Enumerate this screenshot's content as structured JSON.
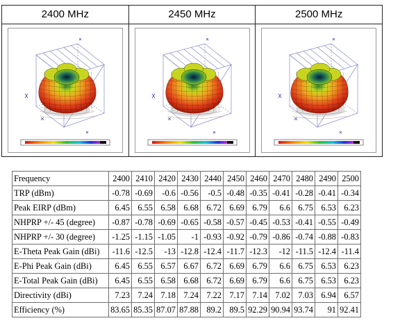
{
  "patterns": [
    {
      "frequency_label": "2400 MHz"
    },
    {
      "frequency_label": "2450 MHz"
    },
    {
      "frequency_label": "2500 MHz"
    }
  ],
  "table": {
    "header_label": "Frequency",
    "frequencies": [
      "2400",
      "2410",
      "2420",
      "2430",
      "2440",
      "2450",
      "2460",
      "2470",
      "2480",
      "2490",
      "2500"
    ],
    "rows": [
      {
        "label": "TRP (dBm)",
        "values": [
          "-0.78",
          "-0.69",
          "-0.6",
          "-0.56",
          "-0.5",
          "-0.48",
          "-0.35",
          "-0.41",
          "-0.28",
          "-0.41",
          "-0.34"
        ]
      },
      {
        "label": "Peak EIRP (dBm)",
        "values": [
          "6.45",
          "6.55",
          "6.58",
          "6.68",
          "6.72",
          "6.69",
          "6.79",
          "6.6",
          "6.75",
          "6.53",
          "6.23"
        ]
      },
      {
        "label": "NHPRP +/- 45 (degree)",
        "values": [
          "-0.87",
          "-0.78",
          "-0.69",
          "-0.65",
          "-0.58",
          "-0.57",
          "-0.45",
          "-0.53",
          "-0.41",
          "-0.55",
          "-0.49"
        ]
      },
      {
        "label": "NHPRP +/- 30 (degree)",
        "values": [
          "-1.25",
          "-1.15",
          "-1.05",
          "-1",
          "-0.93",
          "-0.92",
          "-0.79",
          "-0.86",
          "-0.74",
          "-0.88",
          "-0.83"
        ]
      },
      {
        "label": "E-Theta Peak Gain (dBi)",
        "values": [
          "-11.6",
          "-12.5",
          "-13",
          "-12.8",
          "-12.4",
          "-11.7",
          "-12.3",
          "-12",
          "-11.5",
          "-12.4",
          "-11.4"
        ]
      },
      {
        "label": "E-Phi Peak Gain (dBi)",
        "values": [
          "6.45",
          "6.55",
          "6.57",
          "6.67",
          "6.72",
          "6.69",
          "6.79",
          "6.6",
          "6.75",
          "6.53",
          "6.23"
        ]
      },
      {
        "label": "E-Total Peak Gain (dBi)",
        "values": [
          "6.45",
          "6.55",
          "6.58",
          "6.68",
          "6.72",
          "6.69",
          "6.79",
          "6.6",
          "6.75",
          "6.53",
          "6.23"
        ]
      },
      {
        "label": "Directivity (dBi)",
        "values": [
          "7.23",
          "7.24",
          "7.18",
          "7.24",
          "7.22",
          "7.17",
          "7.14",
          "7.02",
          "7.03",
          "6.94",
          "6.57"
        ]
      },
      {
        "label": "Efficiency (%)",
        "values": [
          "83.65",
          "85.35",
          "87.07",
          "87.88",
          "89.2",
          "89.5",
          "92.29",
          "90.94",
          "93.74",
          "91",
          "92.41"
        ]
      }
    ]
  }
}
